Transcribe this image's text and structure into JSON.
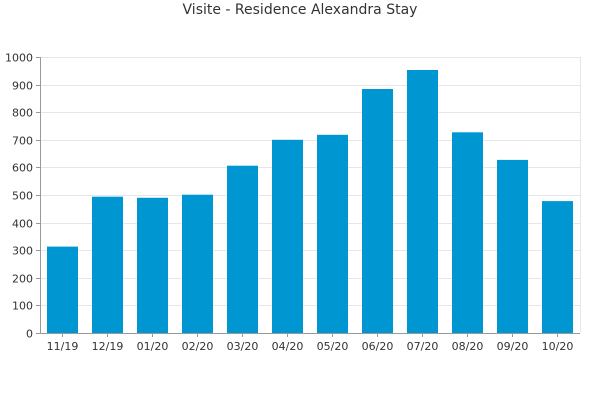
{
  "chart_data": {
    "type": "bar",
    "title": "Visite - Residence Alexandra Stay",
    "xlabel": "",
    "ylabel": "",
    "categories": [
      "11/19",
      "12/19",
      "01/20",
      "02/20",
      "03/20",
      "04/20",
      "05/20",
      "06/20",
      "07/20",
      "08/20",
      "09/20",
      "10/20"
    ],
    "values": [
      313,
      494,
      490,
      501,
      606,
      700,
      718,
      884,
      953,
      727,
      627,
      478
    ],
    "ylim": [
      0,
      1000
    ],
    "yticks": [
      0,
      100,
      200,
      300,
      400,
      500,
      600,
      700,
      800,
      900,
      1000
    ],
    "grid": true,
    "legend": "none",
    "bar_color": "#0096d1",
    "grid_color": "#e6e6e6",
    "axis_color": "#999999",
    "text_color": "#333333"
  }
}
